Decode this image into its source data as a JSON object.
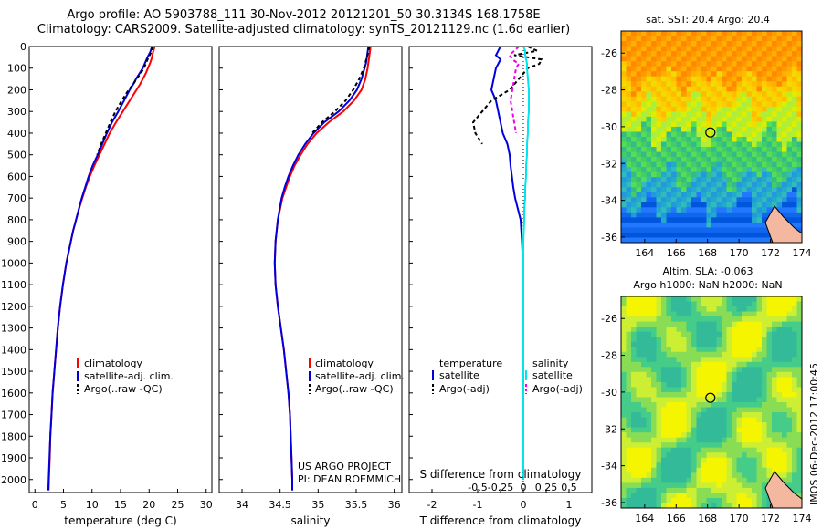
{
  "header": {
    "title_line1": "Argo profile: AO 5903788_111 30-Nov-2012 20121201_50 30.3134S 168.1758E",
    "title_line2": "Climatology: CARS2009. Satellite-adjusted climatology: synTS_20121129.nc (1.6d earlier)"
  },
  "chart_data": [
    {
      "type": "line",
      "title": "",
      "xlabel": "temperature (deg C)",
      "ylabel": "",
      "xlim": [
        -1,
        31
      ],
      "ylim": [
        2060,
        0
      ],
      "x_ticks": [
        "0",
        "5",
        "10",
        "15",
        "20",
        "25",
        "30"
      ],
      "y_ticks": [
        "0",
        "100",
        "200",
        "300",
        "400",
        "500",
        "600",
        "700",
        "800",
        "900",
        "1000",
        "1100",
        "1200",
        "1300",
        "1400",
        "1500",
        "1600",
        "1700",
        "1800",
        "1900",
        "2000"
      ],
      "depth": [
        0,
        25,
        50,
        75,
        100,
        125,
        150,
        175,
        200,
        250,
        300,
        350,
        400,
        450,
        500,
        550,
        600,
        650,
        700,
        750,
        800,
        850,
        900,
        950,
        1000,
        1100,
        1200,
        1300,
        1400,
        1500,
        1600,
        1700,
        1800,
        1900,
        2000,
        2050
      ],
      "series": [
        {
          "name": "climatology",
          "color": "#ff0000",
          "values": [
            21.0,
            20.7,
            20.5,
            20.2,
            19.8,
            19.4,
            18.9,
            18.4,
            17.8,
            16.6,
            15.4,
            14.2,
            13.1,
            12.2,
            11.3,
            10.4,
            9.6,
            8.9,
            8.3,
            7.7,
            7.2,
            6.7,
            6.3,
            5.9,
            5.5,
            4.9,
            4.4,
            4.0,
            3.7,
            3.4,
            3.1,
            2.9,
            2.7,
            2.6,
            2.45,
            2.4
          ]
        },
        {
          "name": "satellite-adj. clim.",
          "color": "#0000dd",
          "values": [
            20.5,
            20.2,
            19.7,
            19.3,
            18.9,
            18.3,
            17.7,
            17.2,
            16.6,
            15.6,
            14.6,
            13.5,
            12.6,
            11.8,
            11.0,
            10.1,
            9.4,
            8.8,
            8.2,
            7.7,
            7.2,
            6.7,
            6.3,
            5.9,
            5.5,
            4.9,
            4.4,
            4.0,
            3.7,
            3.4,
            3.1,
            2.9,
            2.7,
            2.55,
            2.4,
            2.35
          ]
        },
        {
          "name": "Argo(..raw -QC)",
          "color": "#000000",
          "dashed": true,
          "values": [
            20.6,
            20.4,
            19.9,
            19.5,
            19.1,
            18.5,
            17.8,
            17.2,
            16.4,
            15.2,
            14.1,
            13.2,
            12.4,
            11.6,
            10.9,
            null,
            null,
            null,
            null,
            null,
            null,
            null,
            null,
            null,
            null,
            null,
            null,
            null,
            null,
            null,
            null,
            null,
            null,
            null,
            null,
            null
          ]
        }
      ]
    },
    {
      "type": "line",
      "title": "",
      "xlabel": "salinity",
      "ylabel": "",
      "xlim": [
        33.7,
        36.1
      ],
      "ylim": [
        2060,
        0
      ],
      "x_ticks": [
        "34",
        "34.5",
        "35",
        "35.5",
        "36"
      ],
      "depth": [
        0,
        25,
        50,
        75,
        100,
        150,
        200,
        250,
        300,
        350,
        400,
        450,
        500,
        550,
        600,
        650,
        700,
        800,
        900,
        1000,
        1100,
        1200,
        1300,
        1400,
        1500,
        1600,
        1700,
        1800,
        1900,
        2000,
        2050
      ],
      "series": [
        {
          "name": "climatology",
          "color": "#ff0000",
          "values": [
            35.69,
            35.68,
            35.67,
            35.66,
            35.65,
            35.62,
            35.57,
            35.47,
            35.33,
            35.14,
            34.98,
            34.86,
            34.77,
            34.69,
            34.63,
            34.58,
            34.53,
            34.47,
            34.44,
            34.43,
            34.44,
            34.47,
            34.51,
            34.55,
            34.58,
            34.61,
            34.63,
            34.64,
            34.65,
            34.66,
            34.66
          ]
        },
        {
          "name": "satellite-adj. clim.",
          "color": "#0000dd",
          "values": [
            35.66,
            35.65,
            35.64,
            35.63,
            35.61,
            35.57,
            35.51,
            35.41,
            35.27,
            35.08,
            34.94,
            34.83,
            34.74,
            34.67,
            34.61,
            34.56,
            34.52,
            34.47,
            34.44,
            34.43,
            34.44,
            34.47,
            34.51,
            34.55,
            34.58,
            34.61,
            34.63,
            34.64,
            34.65,
            34.66,
            34.66
          ]
        },
        {
          "name": "Argo(..raw -QC)",
          "color": "#000000",
          "dashed": true,
          "values": [
            35.67,
            35.66,
            35.64,
            35.62,
            35.6,
            35.54,
            35.46,
            35.36,
            35.22,
            35.05,
            34.92,
            null,
            null,
            null,
            null,
            null,
            null,
            null,
            null,
            null,
            null,
            null,
            null,
            null,
            null,
            null,
            null,
            null,
            null,
            null,
            null
          ]
        }
      ]
    },
    {
      "type": "line",
      "title": "",
      "xlabel": "T difference from climatology",
      "xlabel_top": "S difference from climatology",
      "xlim": [
        -2.5,
        1.5
      ],
      "ylim": [
        2060,
        0
      ],
      "x_ticks": [
        "-2",
        "-1",
        "0",
        "1"
      ],
      "x_ticks_S": [
        "-0.5",
        "-0.25",
        "0",
        "0.25",
        "0.5"
      ],
      "depth": [
        0,
        20,
        40,
        60,
        80,
        100,
        150,
        200,
        250,
        300,
        350,
        400,
        450,
        500,
        550,
        600,
        650,
        700,
        750,
        800,
        900,
        1000,
        1200,
        1400,
        1600,
        1800,
        2000
      ],
      "series": [
        {
          "name": "temperature satellite",
          "color": "#0000dd",
          "values": [
            -0.5,
            -0.55,
            -0.6,
            -0.5,
            -0.55,
            -0.6,
            -0.65,
            -0.7,
            -0.6,
            -0.55,
            -0.5,
            -0.45,
            -0.35,
            -0.3,
            -0.28,
            -0.25,
            -0.22,
            -0.18,
            -0.12,
            -0.06,
            -0.03,
            -0.01,
            0,
            0,
            0,
            0,
            0
          ]
        },
        {
          "name": "temperature Argo(-adj)",
          "color": "#000000",
          "dashed": true,
          "values": [
            0.1,
            0.3,
            -0.2,
            0.4,
            0.35,
            0.1,
            -0.1,
            -0.3,
            -0.7,
            -0.9,
            -1.1,
            -1.05,
            -0.9,
            null,
            null,
            null,
            null,
            null,
            null,
            null,
            null,
            null,
            null,
            null,
            null,
            null,
            null
          ]
        },
        {
          "name": "salinity satellite",
          "color": "#00e5ee",
          "values": [
            0,
            0.02,
            0.02,
            0.03,
            0.04,
            0.04,
            0.05,
            0.06,
            0.06,
            0.06,
            0.05,
            0.05,
            0.04,
            0.04,
            0.03,
            0.03,
            0.02,
            0.02,
            0.01,
            0.01,
            0,
            0,
            0,
            0,
            0,
            0,
            0
          ]
        },
        {
          "name": "salinity Argo(-adj)",
          "color": "#ee00ee",
          "dashed": true,
          "values": [
            -0.05,
            -0.1,
            -0.15,
            -0.12,
            -0.05,
            -0.08,
            -0.1,
            -0.12,
            -0.14,
            -0.12,
            -0.1,
            -0.08,
            null,
            null,
            null,
            null,
            null,
            null,
            null,
            null,
            null,
            null,
            null,
            null,
            null,
            null,
            null
          ]
        }
      ]
    },
    {
      "type": "heatmap",
      "title": "sat. SST: 20.4  Argo: 20.4",
      "x_ticks": [
        "164",
        "166",
        "168",
        "170",
        "172",
        "174"
      ],
      "y_ticks": [
        "-26",
        "-28",
        "-30",
        "-32",
        "-34",
        "-36"
      ],
      "xlim": [
        162.5,
        174
      ],
      "ylim": [
        -36.3,
        -24.8
      ],
      "argo_position": {
        "lon": 168.18,
        "lat": -30.31
      }
    },
    {
      "type": "heatmap",
      "title": "Altim. SLA: -0.063",
      "subtitle": "Argo h1000: NaN h2000: NaN",
      "x_ticks": [
        "164",
        "166",
        "168",
        "170",
        "172",
        "174"
      ],
      "y_ticks": [
        "-26",
        "-28",
        "-30",
        "-32",
        "-34",
        "-36"
      ],
      "xlim": [
        162.5,
        174
      ],
      "ylim": [
        -36.3,
        -24.8
      ],
      "argo_position": {
        "lon": 168.18,
        "lat": -30.31
      }
    }
  ],
  "legends": {
    "panel1": [
      "climatology",
      "satellite-adj. clim.",
      "Argo(..raw -QC)"
    ],
    "panel3_temp_header": "temperature",
    "panel3_sal_header": "salinity",
    "panel3_items": [
      "satellite",
      "Argo(-adj)",
      "satellite",
      "Argo(-adj)"
    ]
  },
  "annotations": {
    "project_line1": "US ARGO PROJECT",
    "project_line2": "PI: DEAN ROEMMICH",
    "timestamp": "IMOS 06-Dec-2012 17:00:45"
  }
}
